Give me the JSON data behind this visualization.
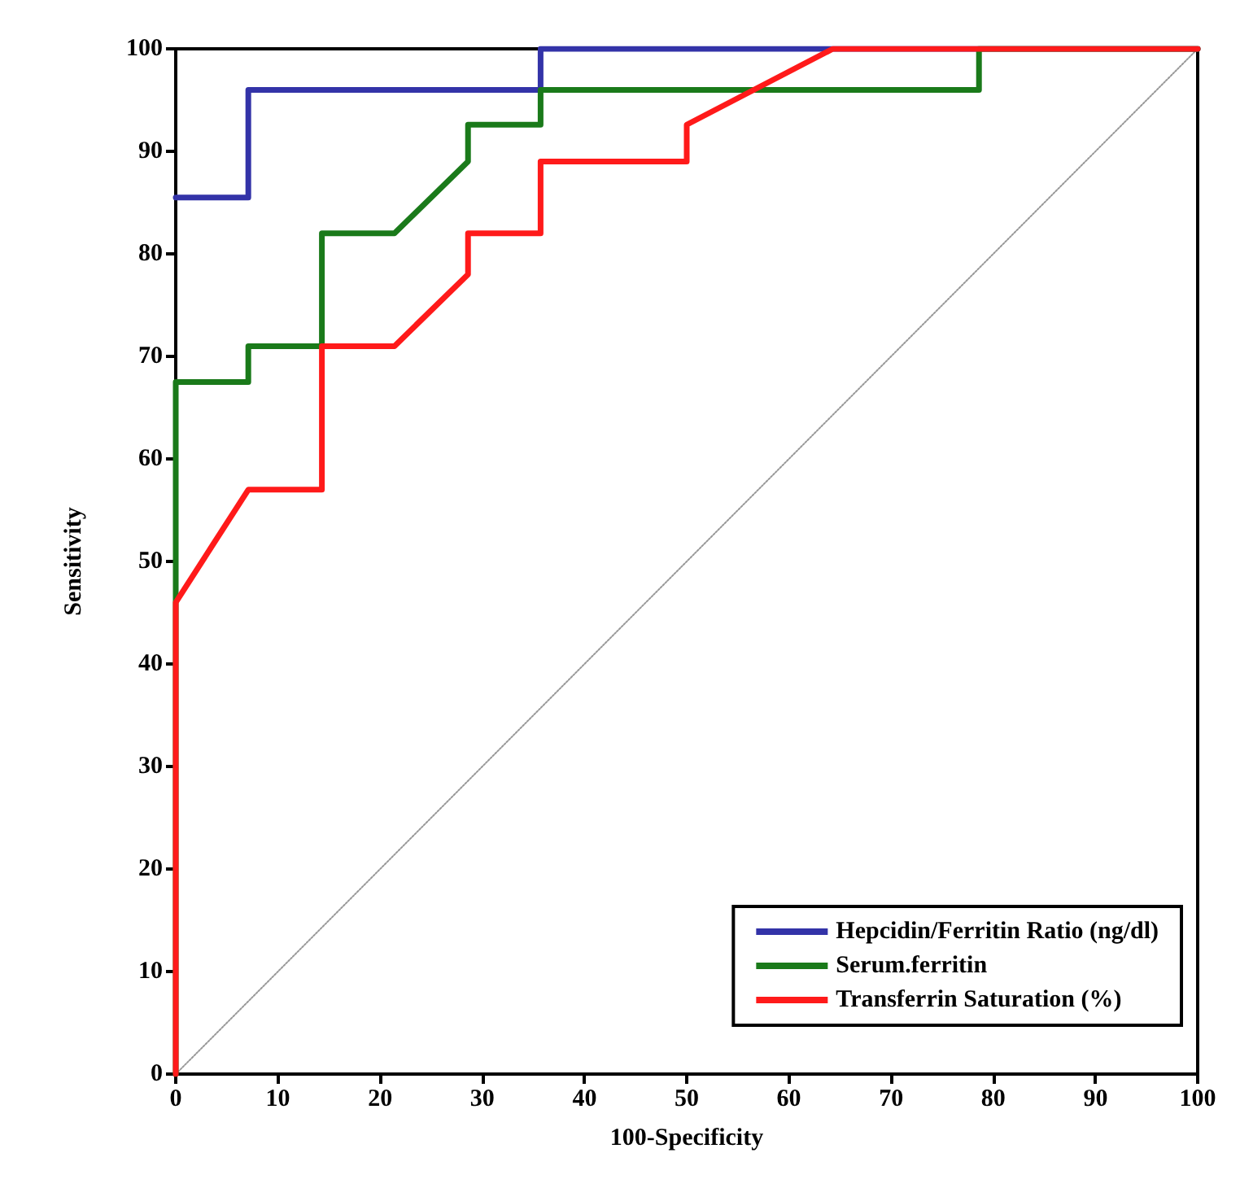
{
  "chart_data": {
    "type": "line",
    "xlabel": "100-Specificity",
    "ylabel": "Sensitivity",
    "xlim": [
      0,
      100
    ],
    "ylim": [
      0,
      100
    ],
    "xticks": [
      0,
      10,
      20,
      30,
      40,
      50,
      60,
      70,
      80,
      90,
      100
    ],
    "yticks": [
      0,
      10,
      20,
      30,
      40,
      50,
      60,
      70,
      80,
      90,
      100
    ],
    "grid": false,
    "legend": "bottom right",
    "marker": "none",
    "series": [
      {
        "name": "Hepcidin/Ferritin Ratio (ng/dl)",
        "color": "#3333a8",
        "x": [
          0,
          7.1,
          7.1,
          35.7,
          35.7,
          100
        ],
        "values": [
          85.5,
          85.5,
          96,
          96,
          100,
          100
        ]
      },
      {
        "name": "Serum.ferritin",
        "color": "#1a7a1a",
        "x": [
          0,
          0,
          7.1,
          7.1,
          14.3,
          14.3,
          21.4,
          28.6,
          28.6,
          35.7,
          35.7,
          78.6,
          78.6,
          100
        ],
        "values": [
          0,
          67.5,
          67.5,
          71,
          71,
          82,
          82,
          89,
          92.6,
          92.6,
          96,
          96,
          100,
          100
        ]
      },
      {
        "name": "Transferrin Saturation (%)",
        "color": "#ff1a1a",
        "x": [
          0,
          0,
          7.1,
          14.3,
          14.3,
          21.4,
          28.6,
          28.6,
          35.7,
          35.7,
          50,
          50,
          64.3,
          100
        ],
        "values": [
          0,
          46,
          57,
          57,
          71,
          71,
          78,
          82,
          82,
          89,
          89,
          92.6,
          100,
          100
        ]
      },
      {
        "color": "#999999",
        "line_style": "dotted",
        "x": [
          0,
          100
        ],
        "values": [
          0,
          100
        ]
      }
    ]
  }
}
